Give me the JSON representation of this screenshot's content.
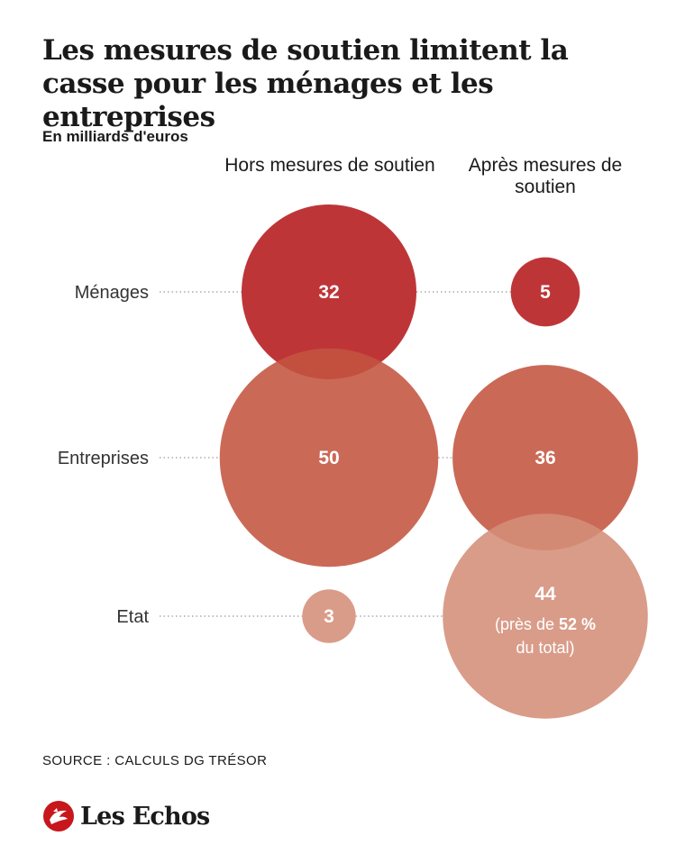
{
  "title": "Les mesures de soutien limitent la casse pour les ménages et les entreprises",
  "unit_label": "En milliards d'euros",
  "columns": [
    "Hors mesures de soutien",
    "Après mesures de soutien"
  ],
  "source": "SOURCE : CALCULS DG TRÉSOR",
  "brand": "Les Echos",
  "chart_data": {
    "type": "bubble",
    "title": "Les mesures de soutien limitent la casse pour les ménages et les entreprises",
    "unit": "En milliards d'euros",
    "columns": [
      "Hors mesures de soutien",
      "Après mesures de soutien"
    ],
    "rows": [
      "Ménages",
      "Entreprises",
      "Etat"
    ],
    "series": [
      {
        "name": "Hors mesures de soutien",
        "values": [
          32,
          50,
          3
        ]
      },
      {
        "name": "Après mesures de soutien",
        "values": [
          5,
          36,
          44
        ]
      }
    ],
    "annotations": [
      {
        "row": "Etat",
        "column": "Après mesures de soutien",
        "lines": [
          "(près de ",
          "52 %",
          "du total)"
        ]
      }
    ],
    "colors": {
      "Ménages": "#b5191c",
      "Entreprises": "#c45440",
      "Etat": "#d48e79",
      "dots": "#9a9a9a"
    }
  }
}
